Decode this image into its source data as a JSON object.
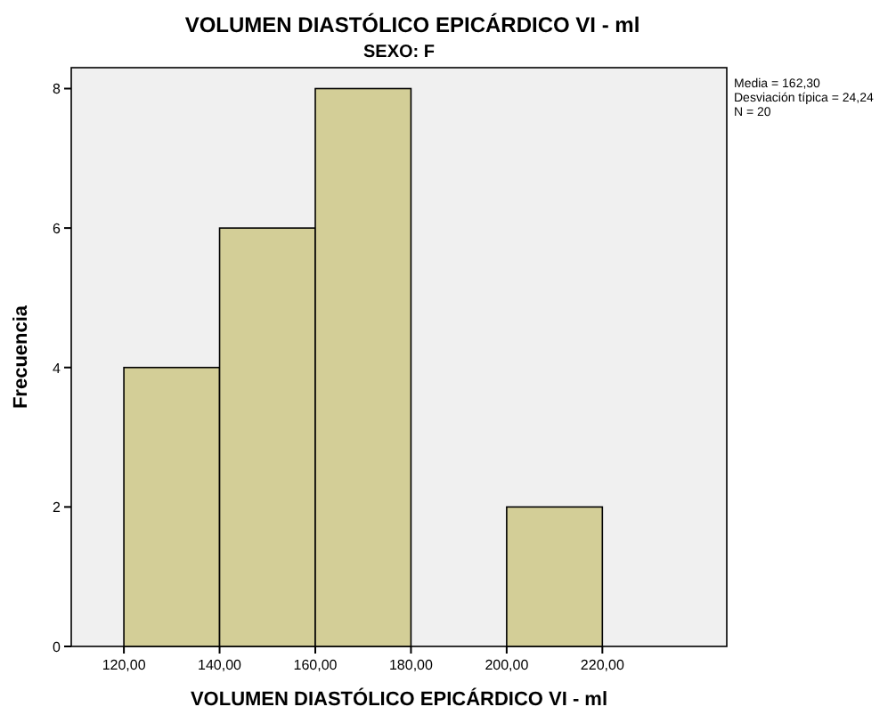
{
  "chart_data": {
    "type": "histogram",
    "title": "VOLUMEN DIASTÓLICO EPICÁRDICO VI - ml",
    "subtitle": "SEXO: F",
    "xlabel": "VOLUMEN DIASTÓLICO EPICÁRDICO VI - ml",
    "ylabel": "Frecuencia",
    "bins": [
      120,
      140,
      160,
      180,
      200,
      220
    ],
    "values": [
      4,
      6,
      8,
      0,
      2
    ],
    "color": "#d3ce97",
    "xlim": [
      109,
      246
    ],
    "ylim": [
      0,
      8.3
    ],
    "xticks": [
      {
        "value": 120,
        "label": "120,00"
      },
      {
        "value": 140,
        "label": "140,00"
      },
      {
        "value": 160,
        "label": "160,00"
      },
      {
        "value": 180,
        "label": "180,00"
      },
      {
        "value": 200,
        "label": "200,00"
      },
      {
        "value": 220,
        "label": "220,00"
      }
    ],
    "yticks": [
      0,
      2,
      4,
      6,
      8
    ],
    "annotations": [
      "Media = 162,30",
      "Desviación típica = 24,24",
      "N = 20"
    ]
  }
}
